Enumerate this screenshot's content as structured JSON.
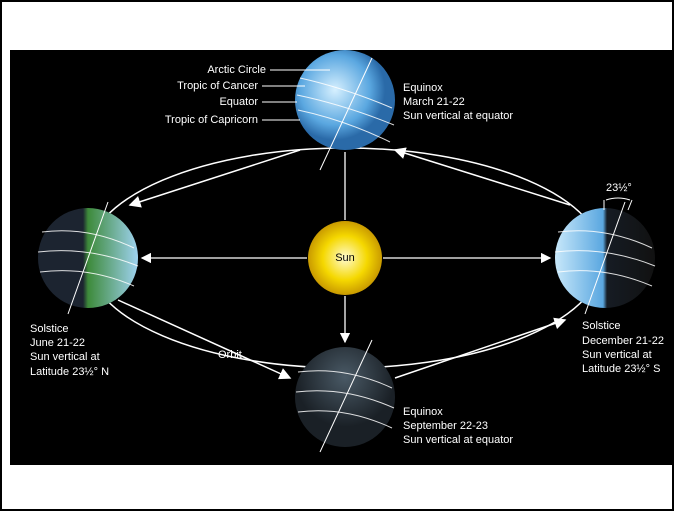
{
  "globe_labels": [
    "Arctic Circle",
    "Tropic of Cancer",
    "Equator",
    "Tropic of Capricorn"
  ],
  "sun": "Sun",
  "orbit": "Orbit",
  "tilt": "23½°",
  "positions": [
    {
      "name": "Equinox",
      "date": "March 21-22",
      "note": [
        "Sun vertical at equator"
      ]
    },
    {
      "name": "Solstice",
      "date": "June 21-22",
      "note": [
        "Sun vertical at",
        "Latitude 23½° N"
      ]
    },
    {
      "name": "Solstice",
      "date": "December 21-22",
      "note": [
        "Sun vertical at",
        "Latitude 23½° S"
      ]
    },
    {
      "name": "Equinox",
      "date": "September 22-23",
      "note": [
        "Sun vertical at equator"
      ]
    }
  ]
}
